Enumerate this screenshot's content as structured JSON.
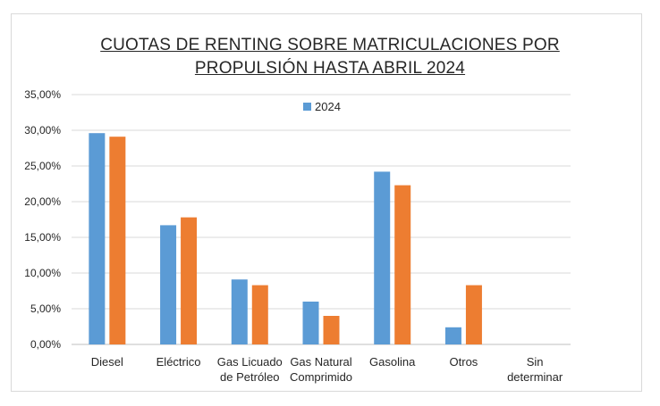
{
  "chart_data": {
    "type": "bar",
    "title_lines": [
      "CUOTAS DE RENTING SOBRE MATRICULACIONES POR",
      "PROPULSIÓN HASTA ABRIL 2024"
    ],
    "categories": [
      [
        "Diesel"
      ],
      [
        "Eléctrico"
      ],
      [
        "Gas Licuado",
        "de Petróleo"
      ],
      [
        "Gas Natural",
        "Comprimido"
      ],
      [
        "Gasolina"
      ],
      [
        "Otros"
      ],
      [
        "Sin",
        "determinar"
      ]
    ],
    "series": [
      {
        "name": "2024",
        "color": "#5b9bd5",
        "values": [
          29.6,
          16.7,
          9.1,
          6.0,
          24.2,
          2.4,
          0.0
        ]
      },
      {
        "color": "#ed7d31",
        "values": [
          29.1,
          17.8,
          8.3,
          4.0,
          22.3,
          8.3,
          0.0
        ]
      }
    ],
    "y_ticks": [
      "0,00%",
      "5,00%",
      "10,00%",
      "15,00%",
      "20,00%",
      "25,00%",
      "30,00%",
      "35,00%"
    ],
    "ylim": [
      0,
      35
    ],
    "grid": true,
    "legend_position": "top-center"
  }
}
